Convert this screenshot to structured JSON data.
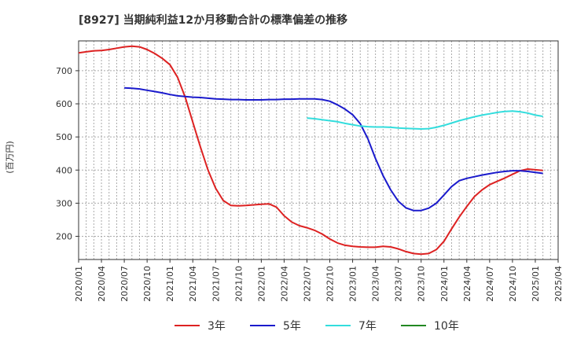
{
  "chart_data": {
    "type": "line",
    "title": "[8927]  当期純利益12か月移動合計の標準偏差の推移",
    "ylabel": "(百万円)",
    "xlabel": "",
    "ylim": [
      130,
      790
    ],
    "yticks": [
      200,
      300,
      400,
      500,
      600,
      700
    ],
    "xticks": [
      "2020/01",
      "2020/04",
      "2020/07",
      "2020/10",
      "2021/01",
      "2021/04",
      "2021/07",
      "2021/10",
      "2022/01",
      "2022/04",
      "2022/07",
      "2022/10",
      "2023/01",
      "2023/04",
      "2023/07",
      "2023/10",
      "2024/01",
      "2024/04",
      "2024/07",
      "2024/10",
      "2025/01",
      "2025/04"
    ],
    "grid": true,
    "series": [
      {
        "name": "3年",
        "color": "#dd2222",
        "points": [
          [
            "2020/01",
            754
          ],
          [
            "2020/02",
            757
          ],
          [
            "2020/03",
            760
          ],
          [
            "2020/04",
            761
          ],
          [
            "2020/05",
            764
          ],
          [
            "2020/06",
            768
          ],
          [
            "2020/07",
            772
          ],
          [
            "2020/08",
            774
          ],
          [
            "2020/09",
            772
          ],
          [
            "2020/10",
            764
          ],
          [
            "2020/11",
            752
          ],
          [
            "2020/12",
            737
          ],
          [
            "2021/01",
            718
          ],
          [
            "2021/02",
            680
          ],
          [
            "2021/03",
            620
          ],
          [
            "2021/04",
            545
          ],
          [
            "2021/05",
            470
          ],
          [
            "2021/06",
            400
          ],
          [
            "2021/07",
            345
          ],
          [
            "2021/08",
            308
          ],
          [
            "2021/09",
            293
          ],
          [
            "2021/10",
            292
          ],
          [
            "2021/11",
            293
          ],
          [
            "2021/12",
            295
          ],
          [
            "2022/01",
            297
          ],
          [
            "2022/02",
            298
          ],
          [
            "2022/03",
            288
          ],
          [
            "2022/04",
            262
          ],
          [
            "2022/05",
            243
          ],
          [
            "2022/06",
            232
          ],
          [
            "2022/07",
            226
          ],
          [
            "2022/08",
            218
          ],
          [
            "2022/09",
            207
          ],
          [
            "2022/10",
            192
          ],
          [
            "2022/11",
            180
          ],
          [
            "2022/12",
            173
          ],
          [
            "2023/01",
            170
          ],
          [
            "2023/02",
            168
          ],
          [
            "2023/03",
            167
          ],
          [
            "2023/04",
            167
          ],
          [
            "2023/05",
            170
          ],
          [
            "2023/06",
            168
          ],
          [
            "2023/07",
            162
          ],
          [
            "2023/08",
            154
          ],
          [
            "2023/09",
            148
          ],
          [
            "2023/10",
            146
          ],
          [
            "2023/11",
            148
          ],
          [
            "2023/12",
            160
          ],
          [
            "2024/01",
            185
          ],
          [
            "2024/02",
            222
          ],
          [
            "2024/03",
            258
          ],
          [
            "2024/04",
            290
          ],
          [
            "2024/05",
            320
          ],
          [
            "2024/06",
            340
          ],
          [
            "2024/07",
            356
          ],
          [
            "2024/08",
            366
          ],
          [
            "2024/09",
            376
          ],
          [
            "2024/10",
            387
          ],
          [
            "2024/11",
            398
          ],
          [
            "2024/12",
            403
          ],
          [
            "2025/01",
            401
          ],
          [
            "2025/02",
            399
          ]
        ]
      },
      {
        "name": "5年",
        "color": "#1a1acc",
        "points": [
          [
            "2020/07",
            648
          ],
          [
            "2020/08",
            647
          ],
          [
            "2020/09",
            645
          ],
          [
            "2020/10",
            641
          ],
          [
            "2020/11",
            637
          ],
          [
            "2020/12",
            633
          ],
          [
            "2021/01",
            628
          ],
          [
            "2021/02",
            624
          ],
          [
            "2021/03",
            622
          ],
          [
            "2021/04",
            620
          ],
          [
            "2021/05",
            619
          ],
          [
            "2021/06",
            617
          ],
          [
            "2021/07",
            615
          ],
          [
            "2021/08",
            614
          ],
          [
            "2021/09",
            613
          ],
          [
            "2021/10",
            613
          ],
          [
            "2021/11",
            612
          ],
          [
            "2021/12",
            612
          ],
          [
            "2022/01",
            612
          ],
          [
            "2022/02",
            613
          ],
          [
            "2022/03",
            613
          ],
          [
            "2022/04",
            614
          ],
          [
            "2022/05",
            614
          ],
          [
            "2022/06",
            615
          ],
          [
            "2022/07",
            615
          ],
          [
            "2022/08",
            615
          ],
          [
            "2022/09",
            613
          ],
          [
            "2022/10",
            608
          ],
          [
            "2022/11",
            597
          ],
          [
            "2022/12",
            584
          ],
          [
            "2023/01",
            567
          ],
          [
            "2023/02",
            540
          ],
          [
            "2023/03",
            495
          ],
          [
            "2023/04",
            435
          ],
          [
            "2023/05",
            383
          ],
          [
            "2023/06",
            340
          ],
          [
            "2023/07",
            306
          ],
          [
            "2023/08",
            286
          ],
          [
            "2023/09",
            278
          ],
          [
            "2023/10",
            278
          ],
          [
            "2023/11",
            285
          ],
          [
            "2023/12",
            300
          ],
          [
            "2024/01",
            325
          ],
          [
            "2024/02",
            350
          ],
          [
            "2024/03",
            368
          ],
          [
            "2024/04",
            375
          ],
          [
            "2024/05",
            380
          ],
          [
            "2024/06",
            385
          ],
          [
            "2024/07",
            389
          ],
          [
            "2024/08",
            393
          ],
          [
            "2024/09",
            396
          ],
          [
            "2024/10",
            398
          ],
          [
            "2024/11",
            398
          ],
          [
            "2024/12",
            396
          ],
          [
            "2025/01",
            393
          ],
          [
            "2025/02",
            390
          ]
        ]
      },
      {
        "name": "7年",
        "color": "#33dddd",
        "points": [
          [
            "2022/07",
            557
          ],
          [
            "2022/08",
            555
          ],
          [
            "2022/09",
            552
          ],
          [
            "2022/10",
            549
          ],
          [
            "2022/11",
            546
          ],
          [
            "2022/12",
            541
          ],
          [
            "2023/01",
            537
          ],
          [
            "2023/02",
            533
          ],
          [
            "2023/03",
            531
          ],
          [
            "2023/04",
            530
          ],
          [
            "2023/05",
            530
          ],
          [
            "2023/06",
            529
          ],
          [
            "2023/07",
            527
          ],
          [
            "2023/08",
            526
          ],
          [
            "2023/09",
            525
          ],
          [
            "2023/10",
            524
          ],
          [
            "2023/11",
            525
          ],
          [
            "2023/12",
            529
          ],
          [
            "2024/01",
            535
          ],
          [
            "2024/02",
            542
          ],
          [
            "2024/03",
            549
          ],
          [
            "2024/04",
            555
          ],
          [
            "2024/05",
            561
          ],
          [
            "2024/06",
            566
          ],
          [
            "2024/07",
            570
          ],
          [
            "2024/08",
            574
          ],
          [
            "2024/09",
            577
          ],
          [
            "2024/10",
            578
          ],
          [
            "2024/11",
            576
          ],
          [
            "2024/12",
            572
          ],
          [
            "2025/01",
            566
          ],
          [
            "2025/02",
            562
          ]
        ]
      },
      {
        "name": "10年",
        "color": "#228822",
        "points": []
      }
    ],
    "legend_position": "bottom-center"
  }
}
